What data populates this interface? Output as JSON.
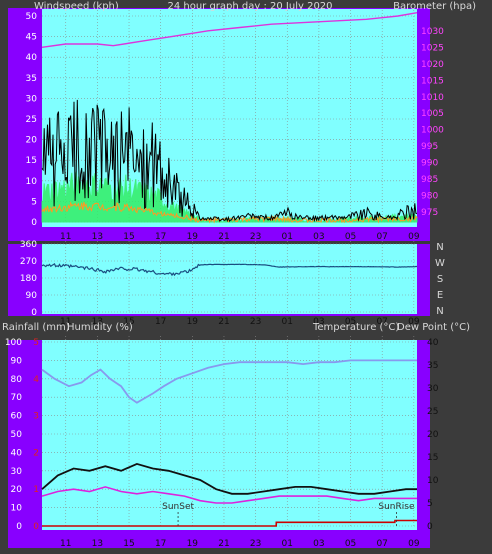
{
  "colors": {
    "frame": "#8800ff",
    "plot_bg": "#80ffff",
    "grid": "#8c8c8c",
    "pressure": "#dd33dd",
    "gust": "#000000",
    "wind_avg": "#33ee66",
    "wind_low": "#ff9922",
    "direction": "#1a4d80",
    "humidity": "#8899ee",
    "temperature": "#111111",
    "dewpoint": "#dd22dd",
    "rain": "#cc0000",
    "left_axis_text": "#ffffff",
    "right_axis_text": "#ff44ff",
    "rain_axis_text": "#dd2222",
    "header_text": "#d8d8d8"
  },
  "chart_data": [
    {
      "type": "line",
      "title": "24 hour graph day : 20 July 2020",
      "ylabel": "Windspeed (kph)",
      "y2label": "Barometer (hpa)",
      "x_ticks": [
        "11",
        "13",
        "15",
        "17",
        "19",
        "21",
        "23",
        "01",
        "03",
        "05",
        "07",
        "09"
      ],
      "xlim": [
        9.5,
        33.2
      ],
      "ylim": [
        0,
        50
      ],
      "y_ticks": [
        0,
        5,
        10,
        15,
        20,
        25,
        30,
        35,
        40,
        45,
        50
      ],
      "y2lim": [
        972,
        1034.5
      ],
      "y2_ticks": [
        975,
        980,
        985,
        990,
        995,
        1000,
        1005,
        1010,
        1015,
        1020,
        1025,
        1030
      ],
      "grid": true,
      "series": [
        {
          "name": "Barometer",
          "axis": "right",
          "x": [
            9.5,
            11,
            13,
            14,
            16,
            18,
            20,
            22,
            24,
            26,
            28,
            30,
            32,
            33.2
          ],
          "y": [
            1025,
            1026,
            1026,
            1025.5,
            1027,
            1028.5,
            1030,
            1031,
            1032,
            1032.5,
            1033,
            1033.5,
            1034.5,
            1035.5
          ]
        },
        {
          "name": "Wind gust",
          "profile": [
            [
              9.5,
              14
            ],
            [
              12,
              17
            ],
            [
              15,
              16
            ],
            [
              16.8,
              13
            ],
            [
              17.5,
              9
            ],
            [
              18.8,
              4
            ],
            [
              19.5,
              1
            ],
            [
              21,
              0.5
            ],
            [
              22.5,
              1.5
            ],
            [
              24,
              1
            ],
            [
              25,
              2
            ],
            [
              26,
              1
            ],
            [
              28,
              1
            ],
            [
              30,
              2
            ],
            [
              31.5,
              1
            ],
            [
              33.2,
              3
            ]
          ],
          "noise": 11
        },
        {
          "name": "Wind average",
          "profile": [
            [
              9.5,
              7
            ],
            [
              12,
              9
            ],
            [
              15,
              8
            ],
            [
              16.8,
              6
            ],
            [
              17.5,
              4
            ],
            [
              18.8,
              2
            ],
            [
              19.5,
              0.5
            ],
            [
              22,
              0.3
            ],
            [
              24,
              1
            ],
            [
              26,
              0.5
            ],
            [
              28,
              0.5
            ],
            [
              30,
              1
            ],
            [
              33.2,
              1.5
            ]
          ],
          "noise": 6
        },
        {
          "name": "Wind low",
          "profile": [
            [
              9.5,
              3
            ],
            [
              12,
              4
            ],
            [
              15,
              3.5
            ],
            [
              17,
              2
            ],
            [
              18.8,
              1
            ],
            [
              19.5,
              0.3
            ],
            [
              24,
              0.8
            ],
            [
              26,
              0.3
            ],
            [
              33.2,
              0.8
            ]
          ],
          "noise": 4
        }
      ]
    },
    {
      "type": "line",
      "right_labels": [
        "N",
        "W",
        "S",
        "E",
        "N"
      ],
      "x_ticks": [
        "11",
        "13",
        "15",
        "17",
        "19",
        "21",
        "23",
        "01",
        "03",
        "05",
        "07",
        "09"
      ],
      "xlim": [
        9.5,
        33.2
      ],
      "ylim": [
        0,
        360
      ],
      "y_ticks": [
        0,
        90,
        180,
        270,
        360
      ],
      "grid": true,
      "series": [
        {
          "name": "Wind direction",
          "x": [
            9.5,
            10.5,
            11.5,
            12.5,
            13.5,
            14.5,
            15.5,
            16.5,
            17.2,
            18,
            18.8,
            19.5,
            20.5,
            22,
            23.5,
            24.5,
            26,
            28,
            30,
            32,
            33.2
          ],
          "y": [
            250,
            245,
            240,
            230,
            215,
            230,
            225,
            212,
            200,
            205,
            215,
            250,
            252,
            252,
            250,
            238,
            240,
            240,
            240,
            238,
            240
          ]
        }
      ]
    },
    {
      "type": "line",
      "ylabel": "Rainfall (mm)",
      "ylabel2": "Humidity (%)",
      "y2label": "Temperature (°C)",
      "y2label2": "Dew Point (°C)",
      "x_ticks": [
        "11",
        "13",
        "15",
        "17",
        "19",
        "21",
        "23",
        "01",
        "03",
        "05",
        "07",
        "09"
      ],
      "xlim": [
        9.5,
        33.2
      ],
      "ylim": [
        0,
        100
      ],
      "y_ticks": [
        0,
        10,
        20,
        30,
        40,
        50,
        60,
        70,
        80,
        90,
        100
      ],
      "rain_ylim": [
        0,
        5
      ],
      "rain_ticks": [
        0,
        1,
        2,
        3,
        4,
        5
      ],
      "y2lim": [
        0,
        40
      ],
      "y2_ticks": [
        0,
        5,
        10,
        15,
        20,
        25,
        30,
        35,
        40
      ],
      "grid": true,
      "annotations": [
        {
          "text": "SunSet",
          "x": 18.1
        },
        {
          "text": "SunRise",
          "x": 31.9
        }
      ],
      "series": [
        {
          "name": "Humidity",
          "axis": "left",
          "x": [
            9.5,
            10.3,
            11.2,
            12,
            12.6,
            13.2,
            13.8,
            14.5,
            15,
            15.5,
            16.5,
            17.2,
            18,
            19,
            20,
            21,
            22,
            23,
            24,
            25,
            26,
            27,
            28,
            29,
            30,
            31,
            32,
            33.2
          ],
          "y": [
            85,
            80,
            76,
            78,
            82,
            85,
            80,
            76,
            70,
            67,
            72,
            76,
            80,
            83,
            86,
            88,
            89,
            89,
            89,
            89,
            88,
            89,
            89,
            90,
            90,
            90,
            90,
            90
          ]
        },
        {
          "name": "Temperature",
          "axis": "right",
          "x": [
            9.5,
            10.5,
            11.5,
            12.5,
            13.5,
            14.5,
            15.5,
            16.5,
            17.5,
            18.5,
            19.5,
            20.5,
            21.5,
            22.5,
            23.5,
            24.5,
            25.5,
            26.5,
            27.5,
            28.5,
            29.5,
            30.5,
            31.5,
            32.5,
            33.2
          ],
          "y": [
            8,
            11,
            12.5,
            12,
            13,
            12,
            13.5,
            12.5,
            12,
            11,
            10,
            8,
            7,
            7,
            7.5,
            8,
            8.5,
            8.5,
            8,
            7.5,
            7,
            7,
            7.5,
            8,
            8
          ]
        },
        {
          "name": "Dew point",
          "axis": "right",
          "x": [
            9.5,
            10.5,
            11.5,
            12.5,
            13.5,
            14.5,
            15.5,
            16.5,
            17.5,
            18.5,
            19.5,
            20.5,
            21.5,
            22.5,
            23.5,
            24.5,
            25.5,
            26.5,
            27.5,
            28.5,
            29.5,
            30.5,
            31.5,
            32.5,
            33.2
          ],
          "y": [
            6.5,
            7.5,
            8,
            7.5,
            8.5,
            7.5,
            7,
            7.5,
            7,
            6.5,
            5.5,
            5,
            5,
            5.5,
            6,
            6.5,
            6.5,
            6.5,
            6.5,
            6,
            5.5,
            6,
            6,
            6,
            6
          ]
        },
        {
          "name": "Rainfall",
          "axis": "rain",
          "x": [
            9.5,
            24.3,
            24.31,
            31.8,
            31.81,
            33.2
          ],
          "y": [
            0,
            0,
            0.1,
            0.1,
            0.15,
            0.15
          ]
        }
      ]
    }
  ]
}
